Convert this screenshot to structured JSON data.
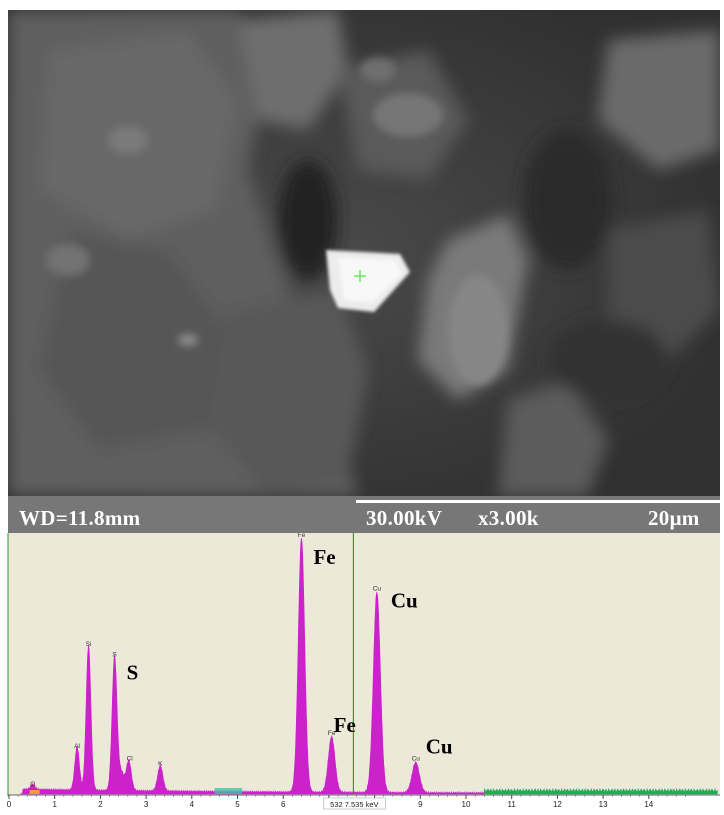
{
  "sem_image": {
    "description_icon": "sem-micrograph",
    "cursor_icon": "crosshair-icon",
    "cursor_color": "#22dd22"
  },
  "scale_bar": {
    "wd": "WD=11.8mm",
    "kv": "30.00kV",
    "magnification": "x3.00k",
    "scale": "20μm"
  },
  "chart_data": {
    "type": "area",
    "xlim": [
      0,
      15
    ],
    "ylim": [
      0,
      100
    ],
    "x_ticks": [
      "0",
      "1",
      "2",
      "3",
      "4",
      "5",
      "6",
      "7",
      "8",
      "9",
      "10",
      "11",
      "12",
      "13",
      "14"
    ],
    "cursor_readout": "532  7.535 keV",
    "cursor_keV": 7.535,
    "colors": {
      "spectrum": "#cc22cc",
      "background": "#ece9d8",
      "cursor": "#1a8a1a",
      "tail": "#22aa55",
      "marker": "#f0a030"
    },
    "peaks": [
      {
        "element": "O",
        "energy": 0.52,
        "height": 2
      },
      {
        "element": "Al",
        "energy": 1.49,
        "height": 17
      },
      {
        "element": "Si",
        "energy": 1.74,
        "height": 57
      },
      {
        "element": "S",
        "energy": 2.31,
        "height": 53
      },
      {
        "element": "S-Kb",
        "energy": 2.46,
        "height": 7
      },
      {
        "element": "Cl",
        "energy": 2.62,
        "height": 12
      },
      {
        "element": "K",
        "energy": 3.31,
        "height": 10
      },
      {
        "element": "Fe",
        "energy": 6.4,
        "height": 100
      },
      {
        "element": "Fe",
        "energy": 7.06,
        "height": 22
      },
      {
        "element": "Cu",
        "energy": 8.05,
        "height": 79
      },
      {
        "element": "Cu",
        "energy": 8.9,
        "height": 12
      }
    ],
    "small_labels": [
      {
        "text": "O",
        "energy": 0.52,
        "height": 2
      },
      {
        "text": "Al",
        "energy": 1.49,
        "height": 17
      },
      {
        "text": "Si",
        "energy": 1.74,
        "height": 57
      },
      {
        "text": "S",
        "energy": 2.31,
        "height": 53
      },
      {
        "text": "Cl",
        "energy": 2.64,
        "height": 12
      },
      {
        "text": "K",
        "energy": 3.31,
        "height": 10
      },
      {
        "text": "Fe",
        "energy": 6.4,
        "height": 100
      },
      {
        "text": "Fe",
        "energy": 7.06,
        "height": 22
      },
      {
        "text": "Cu",
        "energy": 8.05,
        "height": 79
      },
      {
        "text": "Cu",
        "energy": 8.9,
        "height": 12
      }
    ],
    "big_labels": [
      {
        "text": "Fe",
        "energy": 6.4,
        "height": 100
      },
      {
        "text": "Cu",
        "energy": 8.05,
        "height": 79
      },
      {
        "text": "S",
        "energy": 2.31,
        "height": 53
      },
      {
        "text": "Fe",
        "energy": 7.06,
        "height": 22
      },
      {
        "text": "Cu",
        "energy": 8.9,
        "height": 12
      }
    ]
  }
}
